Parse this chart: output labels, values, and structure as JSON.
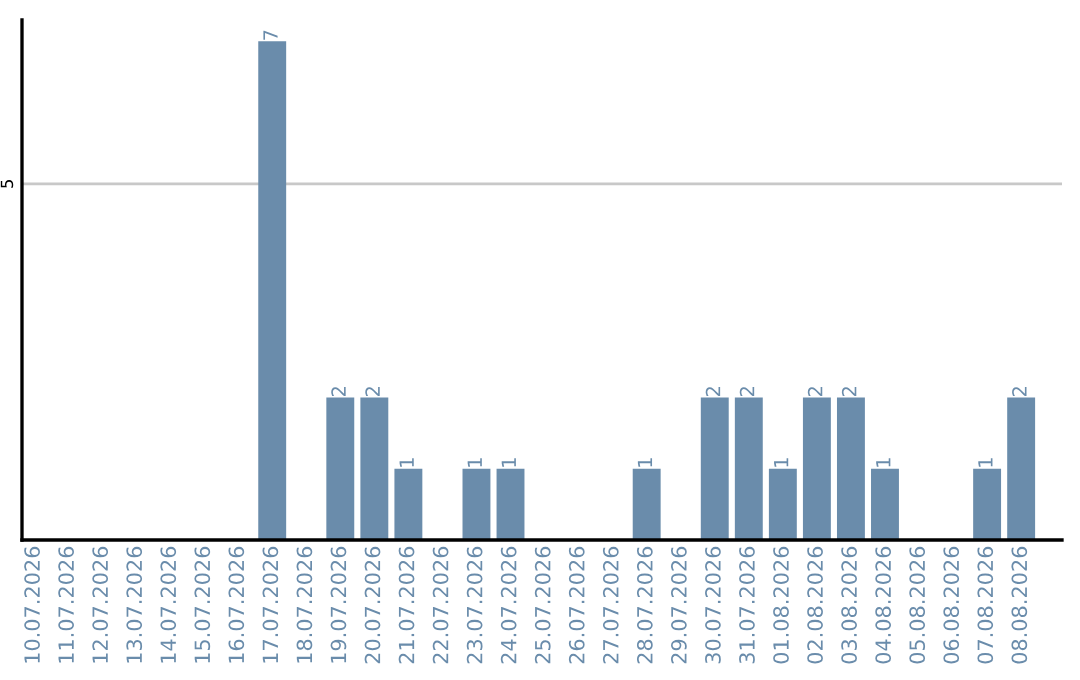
{
  "chart_data": {
    "type": "bar",
    "categories": [
      "10.07.2026",
      "11.07.2026",
      "12.07.2026",
      "13.07.2026",
      "14.07.2026",
      "15.07.2026",
      "16.07.2026",
      "17.07.2026",
      "18.07.2026",
      "19.07.2026",
      "20.07.2026",
      "21.07.2026",
      "22.07.2026",
      "23.07.2026",
      "24.07.2026",
      "25.07.2026",
      "26.07.2026",
      "27.07.2026",
      "28.07.2026",
      "29.07.2026",
      "30.07.2026",
      "31.07.2026",
      "01.08.2026",
      "02.08.2026",
      "03.08.2026",
      "04.08.2026",
      "05.08.2026",
      "06.08.2026",
      "07.08.2026",
      "08.08.2026"
    ],
    "values": [
      0,
      0,
      0,
      0,
      0,
      0,
      0,
      7,
      0,
      2,
      2,
      1,
      0,
      1,
      1,
      0,
      0,
      0,
      1,
      0,
      2,
      2,
      1,
      2,
      2,
      1,
      0,
      0,
      1,
      2
    ],
    "value_labels": [
      null,
      null,
      null,
      null,
      null,
      null,
      null,
      "7",
      null,
      "2",
      "2",
      "1",
      null,
      "1",
      "1",
      null,
      null,
      null,
      "1",
      null,
      "2",
      "2",
      "1",
      "2",
      "2",
      "1",
      null,
      null,
      "1",
      "2"
    ],
    "color": "#6a8cab",
    "ylim": [
      0,
      7.3
    ],
    "yticks": [
      5
    ],
    "grid": "y"
  }
}
